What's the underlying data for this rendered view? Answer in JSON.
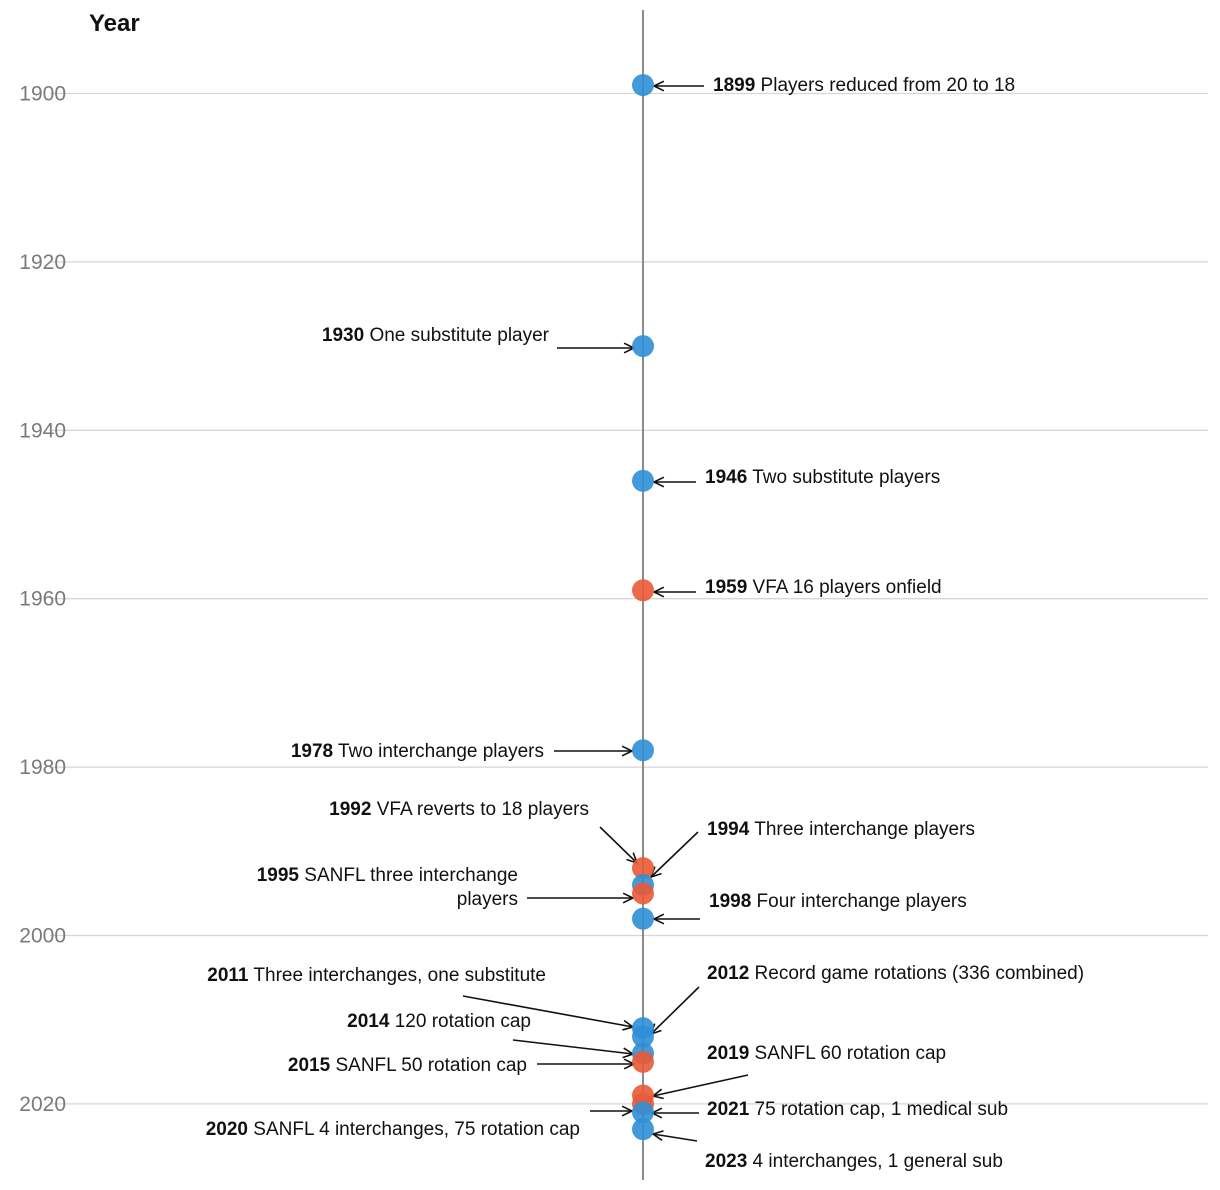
{
  "chart_data": {
    "type": "scatter",
    "title": "",
    "ylabel": "Year",
    "yticks": [
      1900,
      1920,
      1940,
      1960,
      1980,
      2000,
      2020
    ],
    "colors": {
      "rule_change": "#2f8fd6",
      "other_league": "#ea5a36",
      "axis": "#8c8c8c"
    },
    "events": [
      {
        "year": 1899,
        "y": 1899,
        "league": "rule_change",
        "year_label": "1899",
        "text": "Players reduced from 20 to 18"
      },
      {
        "year": 1930,
        "y": 1930,
        "league": "rule_change",
        "year_label": "1930",
        "text": "One substitute player"
      },
      {
        "year": 1946,
        "y": 1946,
        "league": "rule_change",
        "year_label": "1946",
        "text": "Two substitute players"
      },
      {
        "year": 1959,
        "y": 1959,
        "league": "other_league",
        "year_label": "1959",
        "text": "VFA 16 players onfield"
      },
      {
        "year": 1978,
        "y": 1978,
        "league": "rule_change",
        "year_label": "1978",
        "text": "Two interchange players"
      },
      {
        "year": 1992,
        "y": 1992,
        "league": "other_league",
        "year_label": "1992",
        "text": "VFA reverts to 18 players"
      },
      {
        "year": 1994,
        "y": 1994,
        "league": "rule_change",
        "year_label": "1994",
        "text": "Three interchange players"
      },
      {
        "year": 1995,
        "y": 1995,
        "league": "other_league",
        "year_label": "1995",
        "text": "SANFL three interchange",
        "text2": "players"
      },
      {
        "year": 1998,
        "y": 1998,
        "league": "rule_change",
        "year_label": "1998",
        "text": "Four interchange players"
      },
      {
        "year": 2011,
        "y": 2011,
        "league": "rule_change",
        "year_label": "2011",
        "text": "Three interchanges, one substitute"
      },
      {
        "year": 2012,
        "y": 2012,
        "league": "rule_change",
        "year_label": "2012",
        "text": "Record game rotations (336 combined)"
      },
      {
        "year": 2014,
        "y": 2014,
        "league": "rule_change",
        "year_label": "2014",
        "text": "120 rotation cap"
      },
      {
        "year": 2015,
        "y": 2015,
        "league": "other_league",
        "year_label": "2015",
        "text": "SANFL 50 rotation cap"
      },
      {
        "year": 2019,
        "y": 2019,
        "league": "other_league",
        "year_label": "2019",
        "text": "SANFL 60 rotation cap"
      },
      {
        "year": 2020,
        "y": 2020,
        "league": "other_league",
        "year_label": "2020",
        "text": "SANFL 4 interchanges, 75 rotation cap"
      },
      {
        "year": 2021,
        "y": 2021,
        "league": "rule_change",
        "year_label": "2021",
        "text": "75 rotation cap, 1 medical sub"
      },
      {
        "year": 2023,
        "y": 2023,
        "league": "rule_change",
        "year_label": "2023",
        "text": "4 interchanges, 1 general sub"
      }
    ]
  }
}
